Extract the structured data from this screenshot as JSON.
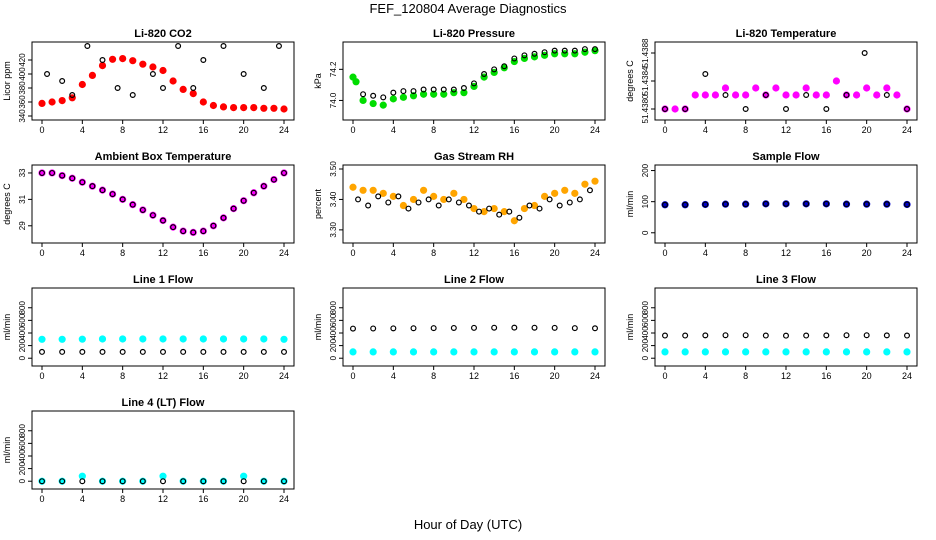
{
  "figure": {
    "title": "FEF_120804  Average Diagnostics",
    "xlabel": "Hour of Day (UTC)"
  },
  "colors": {
    "red": "#ff0000",
    "green": "#00dd00",
    "black": "#000000",
    "magenta": "#ff00ff",
    "orange": "#ffa500",
    "blue": "#0000cc",
    "cyan": "#00ffff"
  },
  "chart_data": [
    {
      "type": "scatter",
      "title": "Li-820 CO2",
      "ylabel": "Licor ppm",
      "xlim": [
        0,
        24
      ],
      "ylim": [
        340,
        440
      ],
      "xticks": [
        "0",
        "4",
        "8",
        "12",
        "16",
        "20",
        "24"
      ],
      "yticks": [
        "340",
        "360",
        "380",
        "400",
        "420"
      ],
      "series": [
        {
          "color": "red",
          "x": [
            0,
            1,
            2,
            3,
            4,
            5,
            6,
            7,
            8,
            9,
            10,
            11,
            12,
            13,
            14,
            15,
            16,
            17,
            18,
            19,
            20,
            21,
            22,
            23,
            24
          ],
          "y": [
            358,
            360,
            362,
            366,
            385,
            398,
            412,
            421,
            422,
            419,
            414,
            410,
            405,
            390,
            378,
            372,
            360,
            355,
            353,
            352,
            352,
            352,
            351,
            351,
            350
          ]
        },
        {
          "color": "black",
          "x": [
            0.5,
            2,
            3,
            4.5,
            6,
            7.5,
            9,
            11,
            12,
            13.5,
            15,
            16,
            18,
            20,
            22,
            23.5
          ],
          "y": [
            400,
            390,
            370,
            440,
            420,
            380,
            370,
            400,
            380,
            440,
            380,
            420,
            440,
            400,
            380,
            440
          ]
        }
      ]
    },
    {
      "type": "scatter",
      "title": "Li-820 Pressure",
      "ylabel": "kPa",
      "xlim": [
        0,
        24
      ],
      "ylim": [
        73.9,
        74.35
      ],
      "xticks": [
        "0",
        "4",
        "8",
        "12",
        "16",
        "20",
        "24"
      ],
      "yticks": [
        "74.0",
        "74.2"
      ],
      "series": [
        {
          "color": "green",
          "x": [
            0,
            0.3,
            1,
            2,
            3,
            4,
            5,
            6,
            7,
            8,
            9,
            10,
            11,
            12,
            13,
            14,
            15,
            16,
            17,
            18,
            19,
            20,
            21,
            22,
            23,
            24
          ],
          "y": [
            74.15,
            74.12,
            74.0,
            73.98,
            73.97,
            74.01,
            74.02,
            74.03,
            74.04,
            74.04,
            74.04,
            74.05,
            74.05,
            74.09,
            74.15,
            74.18,
            74.21,
            74.25,
            74.27,
            74.28,
            74.29,
            74.3,
            74.3,
            74.3,
            74.31,
            74.32
          ]
        },
        {
          "color": "black",
          "x": [
            1,
            2,
            3,
            4,
            5,
            6,
            7,
            8,
            9,
            10,
            11,
            12,
            13,
            14,
            15,
            16,
            17,
            18,
            19,
            20,
            21,
            22,
            23,
            24
          ],
          "y": [
            74.04,
            74.03,
            74.02,
            74.05,
            74.06,
            74.06,
            74.07,
            74.07,
            74.07,
            74.07,
            74.08,
            74.11,
            74.17,
            74.2,
            74.22,
            74.27,
            74.29,
            74.3,
            74.31,
            74.32,
            74.32,
            74.32,
            74.33,
            74.33
          ]
        }
      ]
    },
    {
      "type": "scatter",
      "title": "Li-820 Temperature",
      "ylabel": "degrees C",
      "xlim": [
        0,
        24
      ],
      "ylim": [
        51.4379,
        51.4389
      ],
      "xticks": [
        "0",
        "4",
        "8",
        "12",
        "16",
        "20",
        "24"
      ],
      "yticks": [
        "51.4380",
        "51.4384",
        "51.4388"
      ],
      "series": [
        {
          "color": "magenta",
          "x": [
            0,
            1,
            2,
            3,
            4,
            5,
            6,
            7,
            8,
            9,
            10,
            11,
            12,
            13,
            14,
            15,
            16,
            17,
            18,
            19,
            20,
            21,
            22,
            23,
            24
          ],
          "y": [
            51.438,
            51.438,
            51.438,
            51.4382,
            51.4382,
            51.4382,
            51.4383,
            51.4382,
            51.4382,
            51.4383,
            51.4382,
            51.4383,
            51.4382,
            51.4382,
            51.4383,
            51.4382,
            51.4382,
            51.4384,
            51.4382,
            51.4382,
            51.4383,
            51.4382,
            51.4383,
            51.4382,
            51.438
          ]
        },
        {
          "color": "black",
          "x": [
            0,
            2,
            4,
            6,
            8,
            10,
            12,
            14,
            16,
            18,
            19.8,
            22,
            24
          ],
          "y": [
            51.438,
            51.438,
            51.4385,
            51.4382,
            51.438,
            51.4382,
            51.438,
            51.4382,
            51.438,
            51.4382,
            51.4388,
            51.4382,
            51.438
          ]
        }
      ]
    },
    {
      "type": "scatter",
      "title": "Ambient Box Temperature",
      "ylabel": "degrees C",
      "xlim": [
        0,
        24
      ],
      "ylim": [
        28,
        33.3
      ],
      "xticks": [
        "0",
        "4",
        "8",
        "12",
        "16",
        "20",
        "24"
      ],
      "yticks": [
        "29",
        "31",
        "33"
      ],
      "series": [
        {
          "color": "magenta",
          "x": [
            0,
            1,
            2,
            3,
            4,
            5,
            6,
            7,
            8,
            9,
            10,
            11,
            12,
            13,
            14,
            15,
            16,
            17,
            18,
            19,
            20,
            21,
            22,
            23,
            24
          ],
          "y": [
            33.0,
            33.0,
            32.8,
            32.6,
            32.3,
            32.0,
            31.7,
            31.4,
            31.0,
            30.6,
            30.2,
            29.8,
            29.4,
            28.9,
            28.6,
            28.5,
            28.6,
            29.0,
            29.6,
            30.3,
            30.9,
            31.5,
            32.0,
            32.5,
            33.0
          ]
        },
        {
          "color": "black",
          "x": [
            0,
            1,
            2,
            3,
            4,
            5,
            6,
            7,
            8,
            9,
            10,
            11,
            12,
            13,
            14,
            15,
            16,
            17,
            18,
            19,
            20,
            21,
            22,
            23,
            24
          ],
          "y": [
            33.0,
            33.0,
            32.8,
            32.6,
            32.3,
            32.0,
            31.7,
            31.4,
            31.0,
            30.6,
            30.2,
            29.8,
            29.4,
            28.9,
            28.6,
            28.5,
            28.6,
            29.0,
            29.6,
            30.3,
            30.9,
            31.5,
            32.0,
            32.5,
            33.0
          ]
        }
      ]
    },
    {
      "type": "scatter",
      "title": "Gas Stream RH",
      "ylabel": "percent",
      "xlim": [
        0,
        24
      ],
      "ylim": [
        3.27,
        3.5
      ],
      "xticks": [
        "0",
        "4",
        "8",
        "12",
        "16",
        "20",
        "24"
      ],
      "yticks": [
        "3.30",
        "3.40",
        "3.50"
      ],
      "series": [
        {
          "color": "orange",
          "x": [
            0,
            1,
            2,
            3,
            4,
            5,
            6,
            7,
            8,
            9,
            10,
            11,
            12,
            13,
            14,
            15,
            16,
            17,
            18,
            19,
            20,
            21,
            22,
            23,
            24
          ],
          "y": [
            3.44,
            3.43,
            3.43,
            3.42,
            3.41,
            3.38,
            3.4,
            3.43,
            3.41,
            3.4,
            3.42,
            3.4,
            3.37,
            3.36,
            3.37,
            3.36,
            3.33,
            3.37,
            3.38,
            3.41,
            3.42,
            3.43,
            3.42,
            3.45,
            3.46
          ]
        },
        {
          "color": "black",
          "x": [
            0.5,
            1.5,
            2.5,
            3.5,
            4.5,
            5.5,
            6.5,
            7.5,
            8.5,
            9.5,
            10.5,
            11.5,
            12.5,
            13.5,
            14.5,
            15.5,
            16.5,
            17.5,
            18.5,
            19.5,
            20.5,
            21.5,
            22.5,
            23.5
          ],
          "y": [
            3.4,
            3.38,
            3.41,
            3.39,
            3.41,
            3.37,
            3.39,
            3.4,
            3.38,
            3.4,
            3.39,
            3.38,
            3.36,
            3.37,
            3.35,
            3.36,
            3.34,
            3.38,
            3.37,
            3.4,
            3.38,
            3.39,
            3.4,
            3.43
          ]
        }
      ]
    },
    {
      "type": "scatter",
      "title": "Sample Flow",
      "ylabel": "ml/min",
      "xlim": [
        0,
        24
      ],
      "ylim": [
        -20,
        205
      ],
      "xticks": [
        "0",
        "4",
        "8",
        "12",
        "16",
        "20",
        "24"
      ],
      "yticks": [
        "0",
        "100",
        "200"
      ],
      "series": [
        {
          "color": "blue",
          "x": [
            0,
            2,
            4,
            6,
            8,
            10,
            12,
            14,
            16,
            18,
            20,
            22,
            24
          ],
          "y": [
            90,
            90,
            91,
            92,
            92,
            93,
            93,
            93,
            93,
            92,
            92,
            92,
            91
          ]
        },
        {
          "color": "black",
          "x": [
            0,
            2,
            4,
            6,
            8,
            10,
            12,
            14,
            16,
            18,
            20,
            22,
            24
          ],
          "y": [
            90,
            90,
            91,
            92,
            92,
            93,
            93,
            93,
            93,
            92,
            92,
            92,
            91
          ]
        }
      ]
    },
    {
      "type": "scatter",
      "title": "Line 1 Flow",
      "ylabel": "ml/min",
      "xlim": [
        0,
        24
      ],
      "ylim": [
        -60,
        1050
      ],
      "xticks": [
        "0",
        "4",
        "8",
        "12",
        "16",
        "20",
        "24"
      ],
      "yticks": [
        "0",
        "200",
        "400",
        "600",
        "800"
      ],
      "series": [
        {
          "color": "cyan",
          "x": [
            0,
            2,
            4,
            6,
            8,
            10,
            12,
            14,
            16,
            18,
            20,
            22,
            24
          ],
          "y": [
            300,
            300,
            302,
            305,
            305,
            305,
            305,
            305,
            305,
            305,
            305,
            305,
            300
          ]
        },
        {
          "color": "black",
          "x": [
            0,
            2,
            4,
            6,
            8,
            10,
            12,
            14,
            16,
            18,
            20,
            22,
            24
          ],
          "y": [
            100,
            100,
            100,
            100,
            100,
            100,
            100,
            100,
            100,
            100,
            100,
            100,
            100
          ]
        }
      ]
    },
    {
      "type": "scatter",
      "title": "Line 2 Flow",
      "ylabel": "ml/min",
      "xlim": [
        0,
        24
      ],
      "ylim": [
        -60,
        1050
      ],
      "xticks": [
        "0",
        "4",
        "8",
        "12",
        "16",
        "20",
        "24"
      ],
      "yticks": [
        "0",
        "200",
        "400",
        "600",
        "800"
      ],
      "series": [
        {
          "color": "cyan",
          "x": [
            0,
            2,
            4,
            6,
            8,
            10,
            12,
            14,
            16,
            18,
            20,
            22,
            24
          ],
          "y": [
            100,
            100,
            100,
            100,
            100,
            100,
            100,
            100,
            100,
            100,
            100,
            100,
            100
          ]
        },
        {
          "color": "black",
          "x": [
            0,
            2,
            4,
            6,
            8,
            10,
            12,
            14,
            16,
            18,
            20,
            22,
            24
          ],
          "y": [
            470,
            472,
            474,
            476,
            478,
            480,
            482,
            484,
            485,
            484,
            482,
            478,
            475
          ]
        }
      ]
    },
    {
      "type": "scatter",
      "title": "Line 3 Flow",
      "ylabel": "ml/min",
      "xlim": [
        0,
        24
      ],
      "ylim": [
        -60,
        1050
      ],
      "xticks": [
        "0",
        "4",
        "8",
        "12",
        "16",
        "20",
        "24"
      ],
      "yticks": [
        "0",
        "200",
        "400",
        "600",
        "800"
      ],
      "series": [
        {
          "color": "cyan",
          "x": [
            0,
            2,
            4,
            6,
            8,
            10,
            12,
            14,
            16,
            18,
            20,
            22,
            24
          ],
          "y": [
            100,
            100,
            100,
            100,
            100,
            100,
            100,
            100,
            100,
            100,
            100,
            100,
            100
          ]
        },
        {
          "color": "black",
          "x": [
            0,
            2,
            4,
            6,
            8,
            10,
            12,
            14,
            16,
            18,
            20,
            22,
            24
          ],
          "y": [
            360,
            360,
            362,
            365,
            365,
            360,
            358,
            360,
            362,
            365,
            365,
            362,
            360
          ]
        }
      ]
    },
    {
      "type": "scatter",
      "title": "Line 4 (LT) Flow",
      "ylabel": "ml/min",
      "xlim": [
        0,
        24
      ],
      "ylim": [
        -60,
        1050
      ],
      "xticks": [
        "0",
        "4",
        "8",
        "12",
        "16",
        "20",
        "24"
      ],
      "yticks": [
        "0",
        "200",
        "400",
        "600",
        "800"
      ],
      "series": [
        {
          "color": "cyan",
          "x": [
            0,
            2,
            4,
            6,
            8,
            10,
            12,
            14,
            16,
            18,
            20,
            22,
            24
          ],
          "y": [
            0,
            0,
            80,
            0,
            0,
            0,
            80,
            0,
            0,
            0,
            80,
            0,
            0
          ]
        },
        {
          "color": "black",
          "x": [
            0,
            2,
            4,
            6,
            8,
            10,
            12,
            14,
            16,
            18,
            20,
            22,
            24
          ],
          "y": [
            0,
            0,
            0,
            0,
            0,
            0,
            0,
            0,
            0,
            0,
            0,
            0,
            0
          ]
        }
      ]
    }
  ]
}
